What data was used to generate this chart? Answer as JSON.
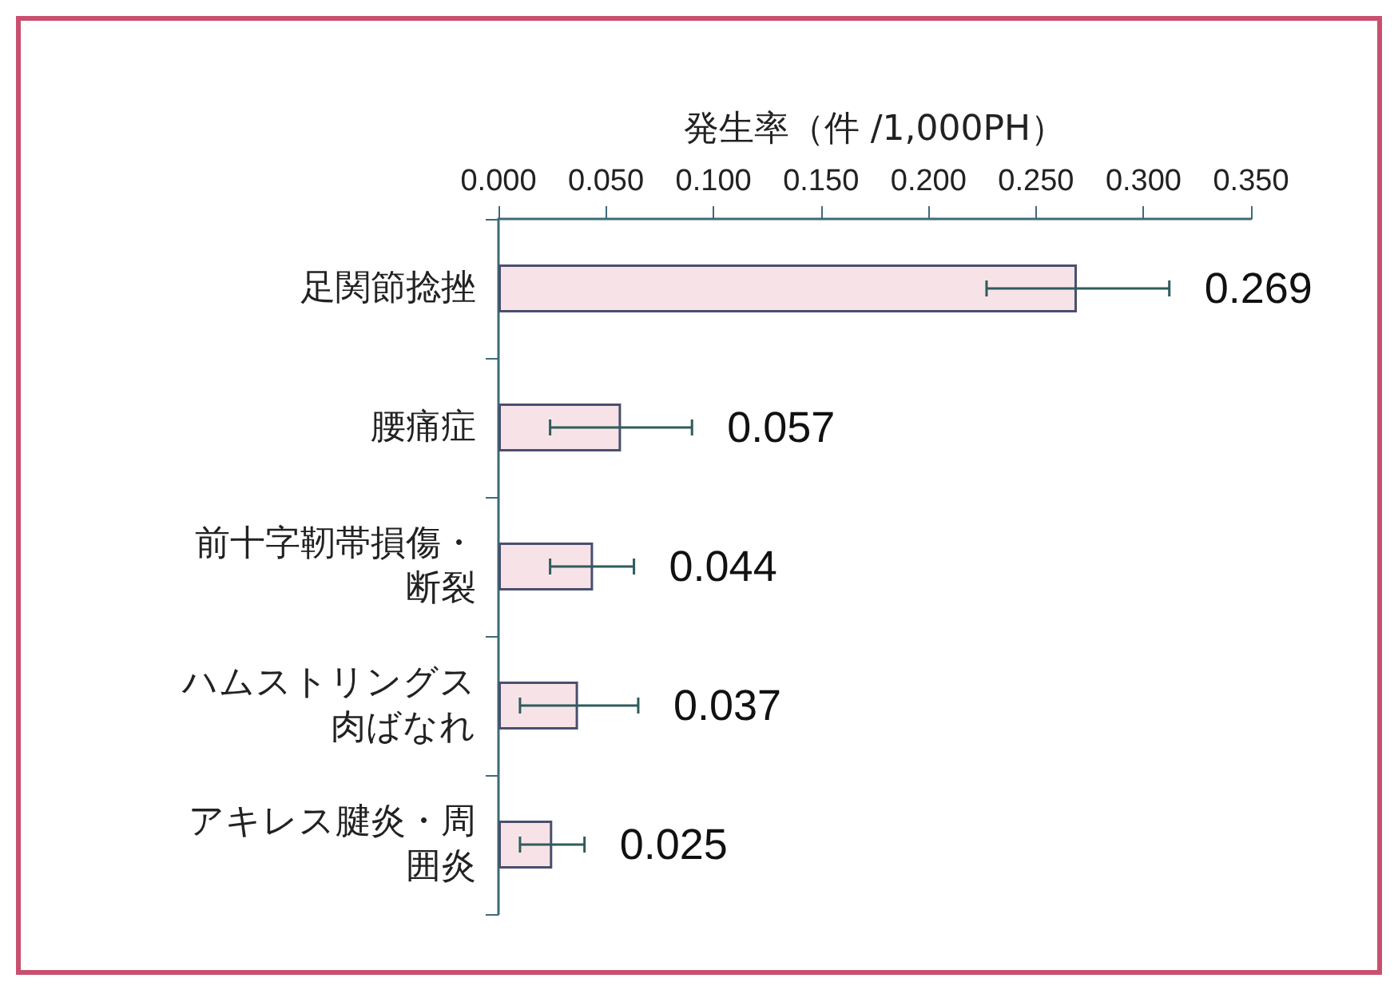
{
  "chart_data": {
    "type": "bar",
    "orientation": "horizontal",
    "xlabel": "発生率（件 /1,000PH）",
    "categories": [
      "足関節捻挫",
      "腰痛症",
      "前十字靭帯損傷・断裂",
      "ハムストリングス肉ばなれ",
      "アキレス腱炎・周囲炎"
    ],
    "values": [
      0.269,
      0.057,
      0.044,
      0.037,
      0.025
    ],
    "errors": [
      [
        0.227,
        0.312
      ],
      [
        0.024,
        0.09
      ],
      [
        0.024,
        0.063
      ],
      [
        0.01,
        0.065
      ],
      [
        0.01,
        0.04
      ]
    ],
    "color": "#f7e3e7",
    "xlim": [
      0,
      0.35
    ],
    "xticks": [
      {
        "value": 0,
        "label": "0.000"
      },
      {
        "value": 0.05,
        "label": "0.050"
      },
      {
        "value": 0.1,
        "label": "0.100"
      },
      {
        "value": 0.15,
        "label": "0.150"
      },
      {
        "value": 0.2,
        "label": "0.200"
      },
      {
        "value": 0.25,
        "label": "0.250"
      },
      {
        "value": 0.3,
        "label": "0.300"
      },
      {
        "value": 0.35,
        "label": "0.350"
      }
    ],
    "data_labels": true
  }
}
